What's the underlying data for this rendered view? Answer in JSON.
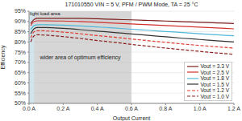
{
  "chart_data": {
    "type": "line",
    "title": "171010550 VIN = 5 V, PFM / PWM Mode, TA = 25 °C",
    "x_label": "Output Current",
    "y_label": "Efficiency",
    "x": [
      0.01,
      0.03,
      0.05,
      0.1,
      0.2,
      0.3,
      0.4,
      0.5,
      0.6,
      0.7,
      0.8,
      0.9,
      1.0,
      1.1,
      1.2
    ],
    "series": [
      {
        "name": "Vout = 3.3 V",
        "color": "#7b1c1c",
        "line_style": "solid",
        "values": [
          89,
          91,
          91.5,
          91.5,
          91.5,
          91.5,
          91.3,
          91,
          90.8,
          90.5,
          90.2,
          89.9,
          89.6,
          89.3,
          89
        ]
      },
      {
        "name": "Vout = 2.5 V",
        "color": "#d0312d",
        "line_style": "solid",
        "values": [
          88,
          90,
          90.3,
          90.3,
          90.2,
          90,
          89.6,
          89.2,
          88.8,
          88.4,
          88,
          87.6,
          87.2,
          86.8,
          86.4
        ]
      },
      {
        "name": "Vout = 1.8 V",
        "color": "#4fb8d8",
        "line_style": "solid",
        "values": [
          86,
          88,
          88.4,
          88.4,
          88.2,
          87.8,
          87.3,
          86.8,
          86.2,
          85.7,
          85.1,
          84.6,
          84,
          83.5,
          83
        ]
      },
      {
        "name": "Vout = 1.5 V",
        "color": "#333333",
        "line_style": "solid",
        "values": [
          84,
          86.5,
          87,
          87,
          86.6,
          86,
          85.3,
          84.6,
          83.9,
          83.2,
          82.5,
          81.8,
          81.2,
          80.6,
          80
        ]
      },
      {
        "name": "Vout = 1.2 V",
        "color": "#e03c31",
        "line_style": "dashed",
        "values": [
          82,
          85,
          85.5,
          85.4,
          84.8,
          84,
          83.1,
          82.3,
          81.4,
          80.6,
          79.8,
          79,
          78.3,
          77.6,
          77
        ]
      },
      {
        "name": "Vout = 1.0 V",
        "color": "#8b2020",
        "line_style": "dashed",
        "values": [
          80,
          83,
          83.5,
          83.3,
          82.6,
          81.7,
          80.7,
          79.8,
          78.8,
          77.9,
          77,
          76.2,
          75.4,
          74.6,
          74
        ]
      }
    ],
    "annotations": [
      {
        "text": "light load area",
        "x_range": [
          0,
          0.03
        ]
      },
      {
        "text": "wider area of optimum efficiency",
        "x_range": [
          0,
          0.6
        ]
      }
    ],
    "xlim": [
      0,
      1.2
    ],
    "xticks": [
      {
        "value": 0,
        "label": "0.0 A"
      },
      {
        "value": 0.2,
        "label": "0.2 A"
      },
      {
        "value": 0.4,
        "label": "0.4 A"
      },
      {
        "value": 0.6,
        "label": "0.6 A"
      },
      {
        "value": 0.8,
        "label": "0.8 A"
      },
      {
        "value": 1.0,
        "label": "1.0 A"
      },
      {
        "value": 1.2,
        "label": "1.2 A"
      }
    ],
    "ylim": [
      50,
      95
    ],
    "yticks": [
      {
        "value": 50,
        "label": "50%"
      },
      {
        "value": 55,
        "label": "55%"
      },
      {
        "value": 60,
        "label": "60%"
      },
      {
        "value": 65,
        "label": "65%"
      },
      {
        "value": 70,
        "label": "70%"
      },
      {
        "value": 75,
        "label": "75%"
      },
      {
        "value": 80,
        "label": "80%"
      },
      {
        "value": 85,
        "label": "85%"
      },
      {
        "value": 90,
        "label": "90%"
      },
      {
        "value": 95,
        "label": "95%"
      }
    ],
    "grid": true,
    "legend": "lower right"
  }
}
